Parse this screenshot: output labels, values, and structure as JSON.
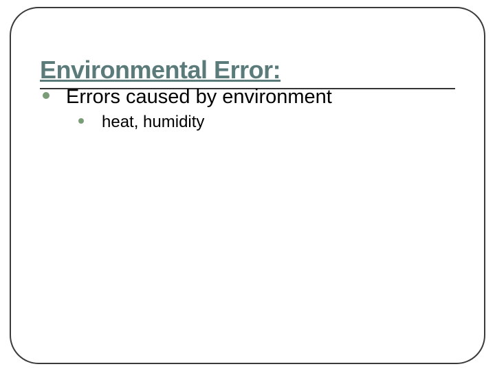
{
  "slide": {
    "title": "Environmental Error:",
    "bullets": [
      {
        "text": "Errors caused by environment",
        "children": [
          {
            "text": "heat, humidity"
          }
        ]
      }
    ]
  },
  "style": {
    "border_color": "#3a3a3a",
    "border_width": 2,
    "border_radius": 42,
    "title_color": "#5b7b7b",
    "title_fontsize": 36,
    "bullet_color": "#7a9c76",
    "body_fontsize_l1": 29,
    "body_fontsize_l2": 24,
    "text_color": "#000000",
    "background_color": "#ffffff",
    "hr_color": "#333333"
  }
}
